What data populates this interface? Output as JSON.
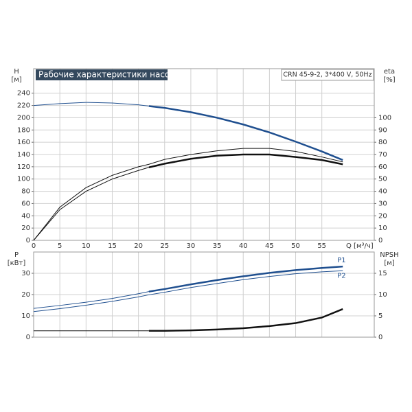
{
  "chart_data": [
    {
      "type": "line",
      "title": "Рабочие характеристики насоса",
      "subtitle": "CRN 45-9-2, 3*400 V, 50Hz",
      "xlabel": "Q [м³/ч]",
      "ylabel": "H",
      "yunit": "[м]",
      "y2label": "eta",
      "y2unit": "[%]",
      "xlim": [
        0,
        65
      ],
      "xticks": [
        0,
        5,
        10,
        15,
        20,
        25,
        30,
        35,
        40,
        45,
        50,
        55
      ],
      "ylim": [
        0,
        280
      ],
      "yticks": [
        0,
        20,
        40,
        60,
        80,
        100,
        120,
        140,
        160,
        180,
        200,
        220,
        240
      ],
      "y2lim": [
        0,
        140
      ],
      "y2ticks": [
        0,
        10,
        20,
        30,
        40,
        50,
        60,
        70,
        80,
        90,
        100
      ],
      "grid": true,
      "x": [
        0,
        5,
        10,
        15,
        20,
        22,
        25,
        30,
        35,
        40,
        45,
        50,
        55,
        59
      ],
      "series": [
        {
          "color": "#1f4f8f",
          "width": 1,
          "values": [
            220,
            223,
            225,
            224,
            221,
            219,
            null,
            null,
            null,
            null,
            null,
            null,
            null,
            null
          ]
        },
        {
          "color": "#1f4f8f",
          "width": 2.5,
          "values": [
            null,
            null,
            null,
            null,
            null,
            219,
            216,
            209,
            200,
            189,
            176,
            161,
            145,
            131
          ]
        },
        {
          "color": "#111111",
          "width": 1,
          "axis": "y2",
          "values": [
            0,
            27,
            43,
            53,
            60,
            62,
            66,
            70,
            73,
            75,
            75,
            72.5,
            68,
            64
          ]
        },
        {
          "color": "#111111",
          "width": 1,
          "axis": "y2",
          "values": [
            0,
            25,
            40,
            50,
            57,
            59.5,
            null,
            null,
            null,
            null,
            null,
            null,
            null,
            null
          ]
        },
        {
          "color": "#111111",
          "width": 2.5,
          "axis": "y2",
          "values": [
            null,
            null,
            null,
            null,
            null,
            59.5,
            62.5,
            66.5,
            69,
            70,
            70,
            68,
            65.5,
            62
          ]
        }
      ]
    },
    {
      "type": "line",
      "ylabel": "P",
      "yunit": "[кВт]",
      "y2label": "NPSH",
      "y2unit": "[м]",
      "xlim": [
        0,
        65
      ],
      "xticks": [
        0,
        5,
        10,
        15,
        20,
        25,
        30,
        35,
        40,
        45,
        50,
        55
      ],
      "show_xtick_labels": false,
      "ylim": [
        0,
        40
      ],
      "yticks": [
        0,
        10,
        20,
        30
      ],
      "y2lim": [
        0,
        20
      ],
      "y2ticks": [
        0,
        5,
        10,
        15
      ],
      "grid": true,
      "x": [
        0,
        5,
        10,
        15,
        20,
        22,
        25,
        30,
        35,
        40,
        45,
        50,
        55,
        59
      ],
      "series": [
        {
          "color": "#1f4f8f",
          "width": 1,
          "values": [
            13.5,
            14.9,
            16.4,
            18.2,
            20.4,
            21.4,
            null,
            null,
            null,
            null,
            null,
            null,
            null,
            null
          ]
        },
        {
          "name": "P1",
          "color": "#1f4f8f",
          "width": 2.5,
          "values": [
            null,
            null,
            null,
            null,
            null,
            21.4,
            22.6,
            24.8,
            26.8,
            28.6,
            30.2,
            31.5,
            32.5,
            33.2
          ]
        },
        {
          "name": "P2",
          "color": "#1f4f8f",
          "width": 1,
          "values": [
            12,
            13.4,
            15,
            16.8,
            18.9,
            19.9,
            21.1,
            23.3,
            25.2,
            27,
            28.5,
            29.8,
            30.7,
            31.2
          ]
        },
        {
          "color": "#111111",
          "width": 1,
          "axis": "y2",
          "values": [
            1.5,
            1.5,
            1.5,
            1.5,
            1.5,
            1.5,
            null,
            null,
            null,
            null,
            null,
            null,
            null,
            null
          ]
        },
        {
          "color": "#111111",
          "width": 2.5,
          "axis": "y2",
          "values": [
            null,
            null,
            null,
            null,
            null,
            1.5,
            1.5,
            1.6,
            1.8,
            2.1,
            2.6,
            3.3,
            4.6,
            6.6
          ]
        }
      ]
    }
  ]
}
